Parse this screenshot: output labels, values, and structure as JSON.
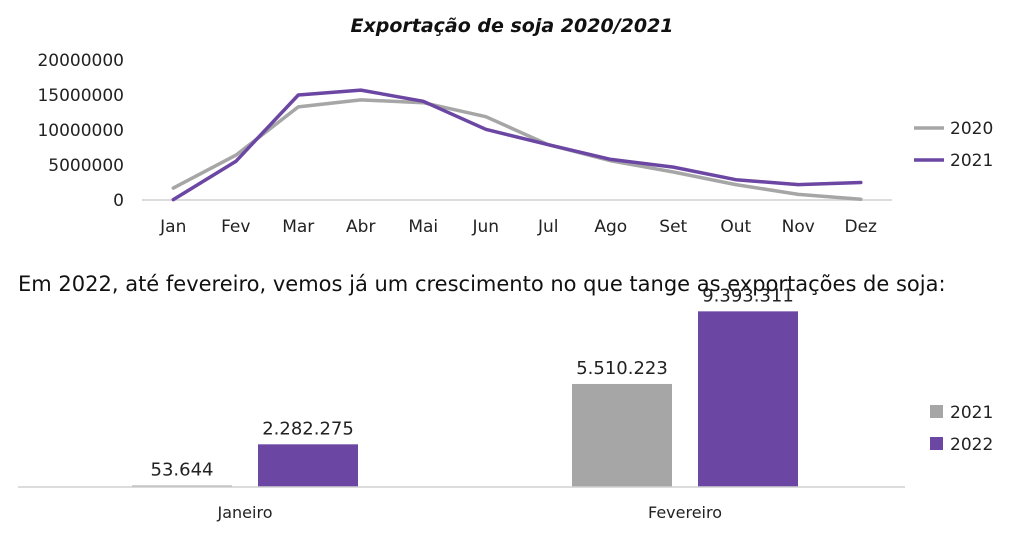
{
  "caption": "Em 2022, até fevereiro, vemos já um crescimento no que tange as exportações de soja:",
  "chart_data": [
    {
      "type": "line",
      "title": "Exportação de soja 2020/2021",
      "xlabel": "",
      "ylabel": "",
      "categories": [
        "Jan",
        "Fev",
        "Mar",
        "Abr",
        "Mai",
        "Jun",
        "Jul",
        "Ago",
        "Set",
        "Out",
        "Nov",
        "Dez"
      ],
      "y_ticks": [
        "0",
        "5000000",
        "10000000",
        "15000000",
        "20000000"
      ],
      "ylim": [
        0,
        20000000
      ],
      "grid": false,
      "legend_position": "right",
      "series": [
        {
          "name": "2020",
          "color": "#a6a6a6",
          "values": [
            1700000,
            6400000,
            13300000,
            14300000,
            13900000,
            11900000,
            7900000,
            5600000,
            4000000,
            2200000,
            800000,
            100000
          ]
        },
        {
          "name": "2021",
          "color": "#6b46a3",
          "values": [
            53644,
            5510223,
            15000000,
            15700000,
            14100000,
            10100000,
            7900000,
            5800000,
            4700000,
            2900000,
            2200000,
            2500000
          ]
        }
      ]
    },
    {
      "type": "bar",
      "title": "",
      "xlabel": "",
      "ylabel": "",
      "categories": [
        "Janeiro",
        "Fevereiro"
      ],
      "ylim": [
        0,
        10000000
      ],
      "grid": false,
      "legend_position": "right",
      "series": [
        {
          "name": "2021",
          "color": "#a6a6a6",
          "values": [
            53644,
            5510223
          ],
          "labels": [
            "53.644",
            "5.510.223"
          ]
        },
        {
          "name": "2022",
          "color": "#6b46a3",
          "values": [
            2282275,
            9393311
          ],
          "labels": [
            "2.282.275",
            "9.393.311"
          ]
        }
      ]
    }
  ]
}
